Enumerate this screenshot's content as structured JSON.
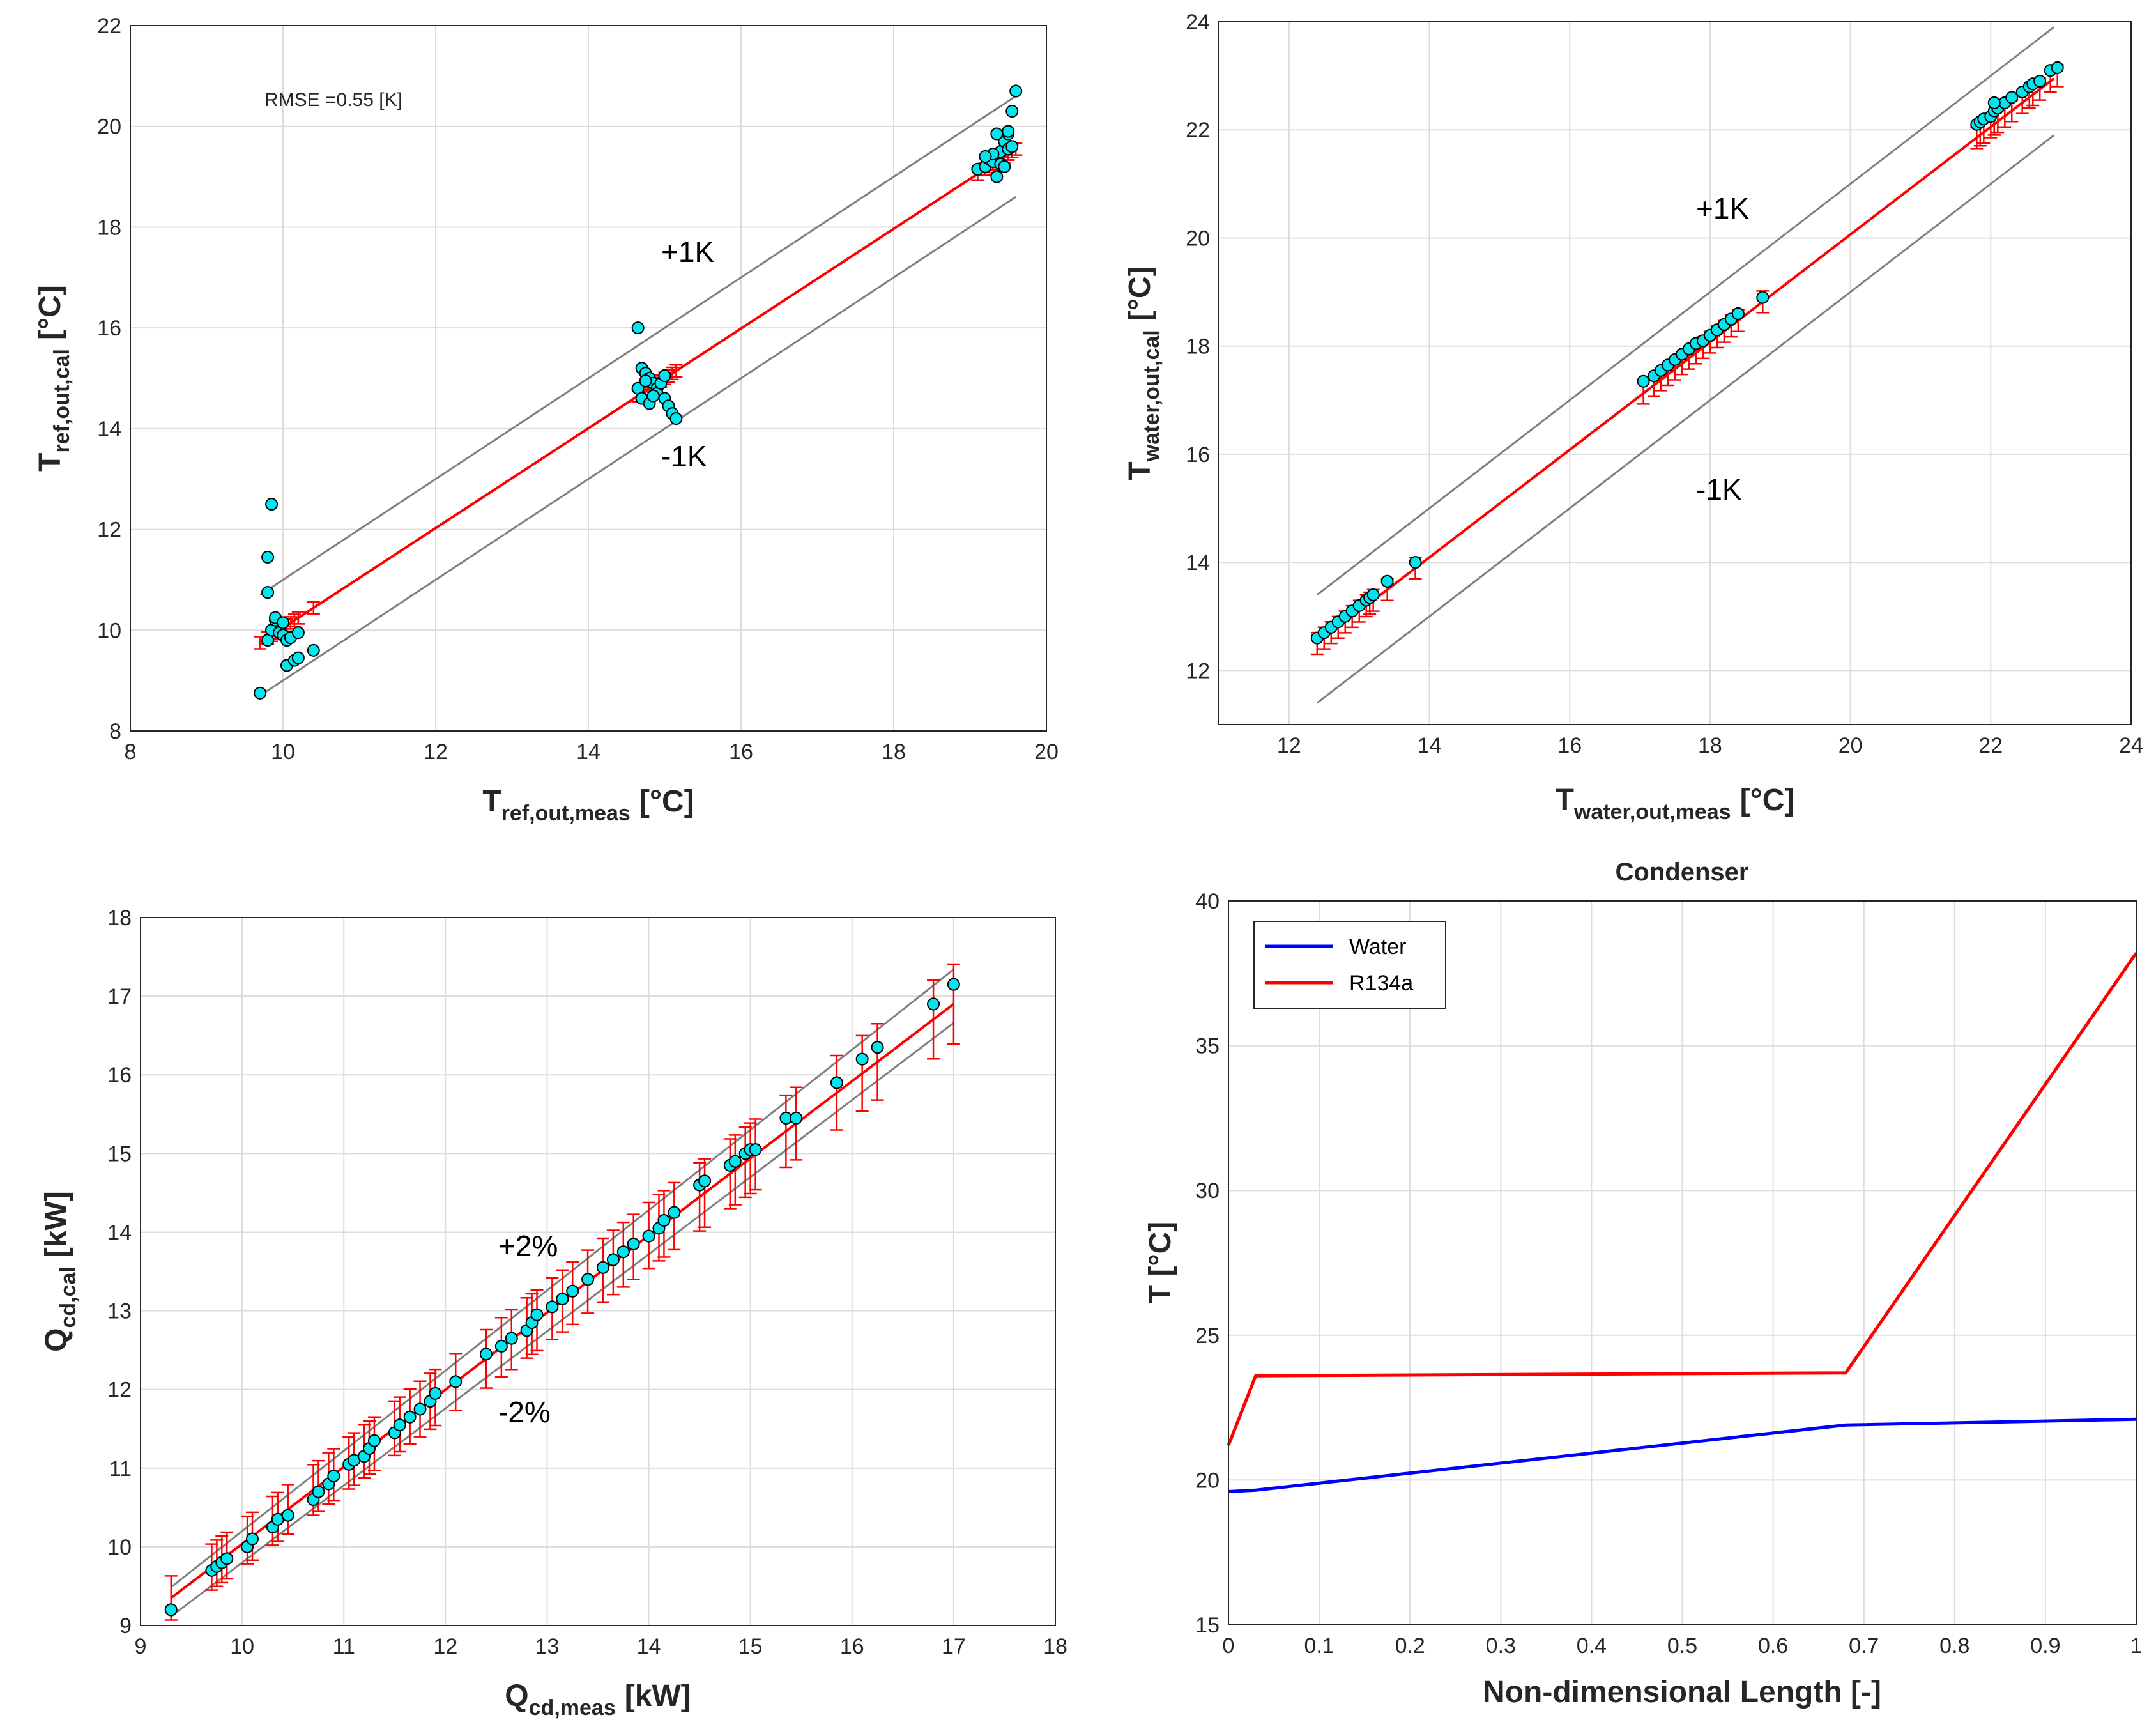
{
  "chart_data": [
    {
      "type": "scatter",
      "xlabel": {
        "main": "T",
        "sub": "ref,out,meas",
        "unit": "[°C]"
      },
      "ylabel": {
        "main": "T",
        "sub": "ref,out,cal",
        "unit": "[°C]"
      },
      "xlim": [
        8,
        20
      ],
      "ylim": [
        8,
        22
      ],
      "xticks": [
        8,
        10,
        12,
        14,
        16,
        18,
        20
      ],
      "yticks": [
        8,
        10,
        12,
        14,
        16,
        18,
        20,
        22
      ],
      "grid": true,
      "annotations": [
        {
          "text": "RMSE =0.55 [K]",
          "x": 8.9,
          "y": 21.5,
          "size": "small"
        },
        {
          "text": "+1K",
          "x": 13.6,
          "y": 18.0
        },
        {
          "text": "-1K",
          "x": 13.6,
          "y": 14.0
        }
      ],
      "reference_lines": [
        {
          "name": "+1K",
          "x": [
            9.7,
            19.6
          ],
          "y": [
            10.7,
            20.6
          ]
        },
        {
          "name": "-1K",
          "x": [
            9.7,
            19.6
          ],
          "y": [
            8.7,
            18.6
          ]
        }
      ],
      "fit_line": {
        "x": [
          9.7,
          19.6
        ],
        "y": [
          9.75,
          19.55
        ],
        "error": 0.12
      },
      "points": [
        [
          9.7,
          8.75
        ],
        [
          9.8,
          9.8
        ],
        [
          9.85,
          10.0
        ],
        [
          9.9,
          10.2
        ],
        [
          9.95,
          9.95
        ],
        [
          10.0,
          9.9
        ],
        [
          10.05,
          9.8
        ],
        [
          10.1,
          9.85
        ],
        [
          10.2,
          9.95
        ],
        [
          10.05,
          9.3
        ],
        [
          10.15,
          9.4
        ],
        [
          10.2,
          9.45
        ],
        [
          10.4,
          9.6
        ],
        [
          9.9,
          10.25
        ],
        [
          9.8,
          10.75
        ],
        [
          9.8,
          11.45
        ],
        [
          9.85,
          12.5
        ],
        [
          10.0,
          10.15
        ],
        [
          14.65,
          16.0
        ],
        [
          14.7,
          15.2
        ],
        [
          14.75,
          15.1
        ],
        [
          14.8,
          15.0
        ],
        [
          14.85,
          14.9
        ],
        [
          14.9,
          14.8
        ],
        [
          14.65,
          14.8
        ],
        [
          14.7,
          14.6
        ],
        [
          14.8,
          14.5
        ],
        [
          14.9,
          14.7
        ],
        [
          14.95,
          14.9
        ],
        [
          15.0,
          14.6
        ],
        [
          15.05,
          14.45
        ],
        [
          15.1,
          14.3
        ],
        [
          15.15,
          14.2
        ],
        [
          14.75,
          14.95
        ],
        [
          14.85,
          14.65
        ],
        [
          15.0,
          15.05
        ],
        [
          19.1,
          19.15
        ],
        [
          19.2,
          19.2
        ],
        [
          19.25,
          19.35
        ],
        [
          19.3,
          19.3
        ],
        [
          19.35,
          19.0
        ],
        [
          19.4,
          19.5
        ],
        [
          19.45,
          19.7
        ],
        [
          19.5,
          19.85
        ],
        [
          19.55,
          20.3
        ],
        [
          19.6,
          20.7
        ],
        [
          19.5,
          19.55
        ],
        [
          19.4,
          19.25
        ],
        [
          19.3,
          19.45
        ],
        [
          19.45,
          19.2
        ],
        [
          19.55,
          19.6
        ],
        [
          19.35,
          19.85
        ],
        [
          19.5,
          19.9
        ],
        [
          19.2,
          19.4
        ]
      ]
    },
    {
      "type": "scatter",
      "xlabel": {
        "main": "T",
        "sub": "water,out,meas",
        "unit": "[°C]"
      },
      "ylabel": {
        "main": "T",
        "sub": "water,out,cal",
        "unit": "[°C]"
      },
      "xlim": [
        11,
        24
      ],
      "ylim": [
        11,
        24
      ],
      "xticks": [
        12,
        14,
        16,
        18,
        20,
        22,
        24
      ],
      "yticks": [
        12,
        14,
        16,
        18,
        20,
        22,
        24
      ],
      "grid": true,
      "annotations": [
        {
          "text": "+1K",
          "x": 17.8,
          "y": 20.4
        },
        {
          "text": "-1K",
          "x": 17.8,
          "y": 16.0
        }
      ],
      "reference_lines": [
        {
          "name": "+1K",
          "x": [
            12.4,
            22.9
          ],
          "y": [
            13.4,
            23.9
          ]
        },
        {
          "name": "-1K",
          "x": [
            12.4,
            22.9
          ],
          "y": [
            11.4,
            21.9
          ]
        }
      ],
      "fit_line": {
        "x": [
          12.4,
          22.9
        ],
        "y": [
          12.5,
          22.95
        ],
        "error": 0.2
      },
      "points": [
        [
          12.4,
          12.6
        ],
        [
          12.5,
          12.7
        ],
        [
          12.6,
          12.8
        ],
        [
          12.7,
          12.9
        ],
        [
          12.8,
          13.0
        ],
        [
          12.9,
          13.1
        ],
        [
          13.0,
          13.2
        ],
        [
          13.1,
          13.3
        ],
        [
          13.15,
          13.35
        ],
        [
          13.2,
          13.4
        ],
        [
          13.4,
          13.65
        ],
        [
          13.8,
          14.0
        ],
        [
          17.05,
          17.35
        ],
        [
          17.2,
          17.45
        ],
        [
          17.3,
          17.55
        ],
        [
          17.4,
          17.65
        ],
        [
          17.5,
          17.75
        ],
        [
          17.6,
          17.85
        ],
        [
          17.7,
          17.95
        ],
        [
          17.8,
          18.05
        ],
        [
          17.9,
          18.1
        ],
        [
          18.0,
          18.2
        ],
        [
          18.1,
          18.3
        ],
        [
          18.2,
          18.4
        ],
        [
          18.3,
          18.5
        ],
        [
          18.4,
          18.6
        ],
        [
          18.75,
          18.9
        ],
        [
          21.8,
          22.1
        ],
        [
          21.85,
          22.15
        ],
        [
          21.9,
          22.2
        ],
        [
          22.0,
          22.25
        ],
        [
          22.05,
          22.35
        ],
        [
          22.1,
          22.4
        ],
        [
          22.2,
          22.5
        ],
        [
          22.3,
          22.6
        ],
        [
          22.45,
          22.7
        ],
        [
          22.55,
          22.8
        ],
        [
          22.6,
          22.85
        ],
        [
          22.7,
          22.9
        ],
        [
          22.85,
          23.1
        ],
        [
          22.95,
          23.15
        ],
        [
          22.05,
          22.5
        ]
      ]
    },
    {
      "type": "scatter",
      "xlabel": {
        "main": "Q",
        "sub": "cd,meas",
        "unit": "[kW]"
      },
      "ylabel": {
        "main": "Q",
        "sub": "cd,cal",
        "unit": "[kW]"
      },
      "xlim": [
        9,
        18
      ],
      "ylim": [
        9,
        18
      ],
      "xticks": [
        9,
        10,
        11,
        12,
        13,
        14,
        15,
        16,
        17,
        18
      ],
      "yticks": [
        9,
        10,
        11,
        12,
        13,
        14,
        15,
        16,
        17,
        18
      ],
      "grid": true,
      "annotations": [
        {
          "text": "+2%",
          "x": 12.55,
          "y": 13.7
        },
        {
          "text": "-2%",
          "x": 12.55,
          "y": 11.55
        }
      ],
      "reference_lines": [
        {
          "name": "+2%",
          "factor": 1.02,
          "x": [
            9.3,
            17.0
          ]
        },
        {
          "name": "-2%",
          "factor": 0.98,
          "x": [
            9.3,
            17.0
          ]
        }
      ],
      "fit_line": {
        "x": [
          9.3,
          17.0
        ],
        "y": [
          9.35,
          16.9
        ],
        "error_rel": 0.03
      },
      "points": [
        [
          9.3,
          9.2
        ],
        [
          9.7,
          9.7
        ],
        [
          9.75,
          9.75
        ],
        [
          9.8,
          9.8
        ],
        [
          9.85,
          9.85
        ],
        [
          10.05,
          10.0
        ],
        [
          10.1,
          10.1
        ],
        [
          10.3,
          10.25
        ],
        [
          10.35,
          10.35
        ],
        [
          10.45,
          10.4
        ],
        [
          10.7,
          10.6
        ],
        [
          10.75,
          10.7
        ],
        [
          10.85,
          10.8
        ],
        [
          10.9,
          10.9
        ],
        [
          11.05,
          11.05
        ],
        [
          11.1,
          11.1
        ],
        [
          11.2,
          11.15
        ],
        [
          11.25,
          11.25
        ],
        [
          11.3,
          11.35
        ],
        [
          11.5,
          11.45
        ],
        [
          11.55,
          11.55
        ],
        [
          11.65,
          11.65
        ],
        [
          11.75,
          11.75
        ],
        [
          11.85,
          11.85
        ],
        [
          11.9,
          11.95
        ],
        [
          12.1,
          12.1
        ],
        [
          12.4,
          12.45
        ],
        [
          12.55,
          12.55
        ],
        [
          12.65,
          12.65
        ],
        [
          12.8,
          12.75
        ],
        [
          12.85,
          12.85
        ],
        [
          12.9,
          12.95
        ],
        [
          13.05,
          13.05
        ],
        [
          13.15,
          13.15
        ],
        [
          13.25,
          13.25
        ],
        [
          13.4,
          13.4
        ],
        [
          13.55,
          13.55
        ],
        [
          13.65,
          13.65
        ],
        [
          13.75,
          13.75
        ],
        [
          13.85,
          13.85
        ],
        [
          14.0,
          13.95
        ],
        [
          14.1,
          14.05
        ],
        [
          14.15,
          14.15
        ],
        [
          14.25,
          14.25
        ],
        [
          14.5,
          14.6
        ],
        [
          14.55,
          14.65
        ],
        [
          14.8,
          14.85
        ],
        [
          14.85,
          14.9
        ],
        [
          14.95,
          15.0
        ],
        [
          15.0,
          15.05
        ],
        [
          15.05,
          15.05
        ],
        [
          15.35,
          15.45
        ],
        [
          15.45,
          15.45
        ],
        [
          15.85,
          15.9
        ],
        [
          16.1,
          16.2
        ],
        [
          16.25,
          16.35
        ],
        [
          16.8,
          16.9
        ],
        [
          17.0,
          17.15
        ]
      ]
    },
    {
      "type": "line",
      "title": "Condenser",
      "xlabel": "Non-dimensional Length [-]",
      "ylabel": "T [°C]",
      "xlim": [
        0,
        1
      ],
      "ylim": [
        15,
        40
      ],
      "xticks": [
        0,
        0.1,
        0.2,
        0.3,
        0.4,
        0.5,
        0.6,
        0.7,
        0.8,
        0.9,
        1
      ],
      "xtick_labels": [
        "0",
        "0.1",
        "0.2",
        "0.3",
        "0.4",
        "0.5",
        "0.6",
        "0.7",
        "0.8",
        "0.9",
        "1"
      ],
      "yticks": [
        15,
        20,
        25,
        30,
        35,
        40
      ],
      "grid": true,
      "legend_position": "top-left",
      "series": [
        {
          "name": "Water",
          "color": "#0000ff",
          "x": [
            0,
            0.03,
            0.68,
            1.0
          ],
          "y": [
            19.6,
            19.65,
            21.9,
            22.1
          ]
        },
        {
          "name": "R134a",
          "color": "#ff0000",
          "x": [
            0,
            0.03,
            0.68,
            1.0
          ],
          "y": [
            21.2,
            23.6,
            23.7,
            38.2
          ]
        }
      ]
    }
  ],
  "colors": {
    "marker_fill": "#00e5ee",
    "fit": "#ff0000",
    "reference": "#808080",
    "grid": "#dcdcdc"
  }
}
